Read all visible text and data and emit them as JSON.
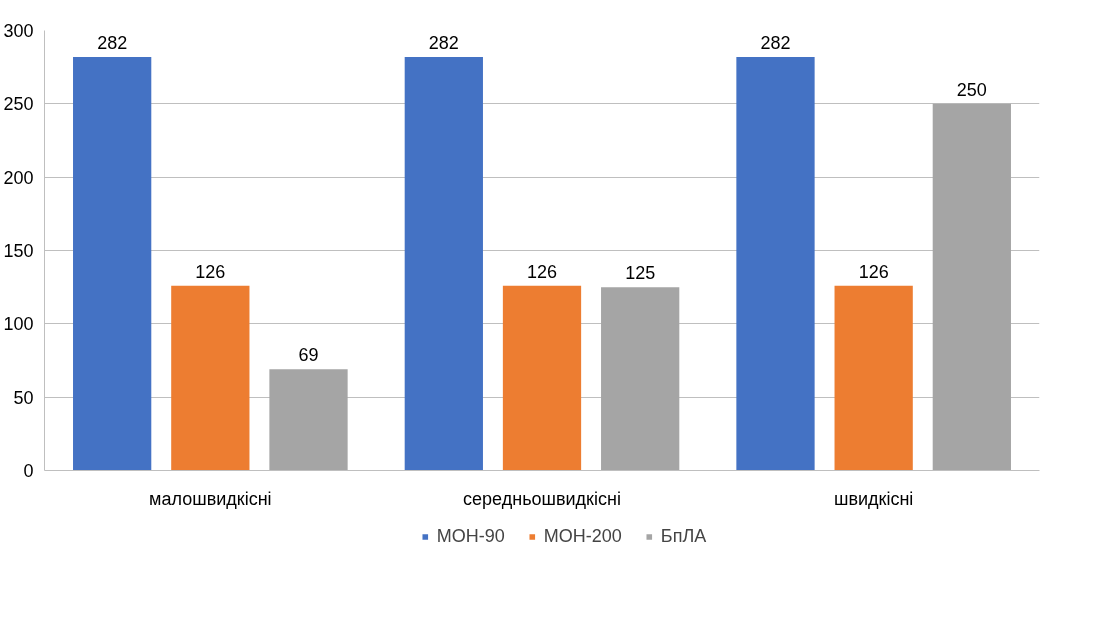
{
  "chart_data": {
    "type": "bar",
    "categories": [
      "малошвидкісні",
      "середньошвидкісні",
      "швидкісні"
    ],
    "series": [
      {
        "name": "МОН-90",
        "color": "#4472c4",
        "values": [
          282,
          282,
          282
        ]
      },
      {
        "name": "МОН-200",
        "color": "#ed7d31",
        "values": [
          126,
          126,
          126
        ]
      },
      {
        "name": "БпЛА",
        "color": "#a5a5a5",
        "values": [
          69,
          125,
          250
        ]
      }
    ],
    "ylim": [
      0,
      300
    ],
    "yticks": [
      0,
      50,
      100,
      150,
      200,
      250,
      300
    ],
    "grid": "y",
    "legend": "bottom",
    "data_labels": true
  }
}
